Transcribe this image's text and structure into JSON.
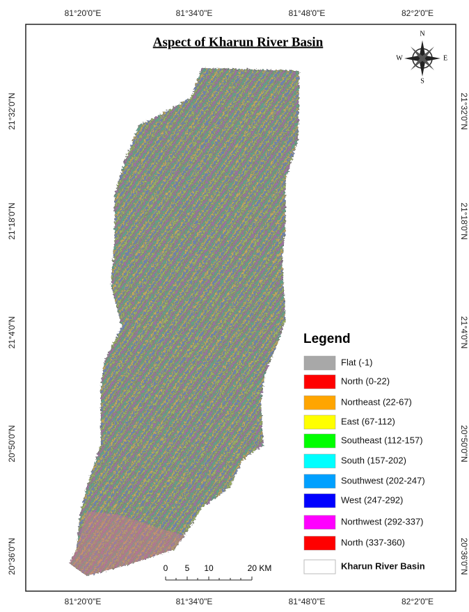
{
  "title": "Aspect of Kharun River Basin",
  "compass": {
    "n": "N",
    "s": "S",
    "e": "E",
    "w": "W"
  },
  "top_labels": [
    "81°20'0\"E",
    "81°34'0\"E",
    "81°48'0\"E",
    "82°2'0\"E"
  ],
  "bottom_labels": [
    "81°20'0\"E",
    "81°34'0\"E",
    "81°48'0\"E",
    "82°2'0\"E"
  ],
  "left_labels": [
    "21°32'0\"N",
    "21°18'0\"N",
    "21°4'0\"N",
    "20°50'0\"N",
    "20°36'0\"N"
  ],
  "right_labels": [
    "21°32'0\"N",
    "21°18'0\"N",
    "21°4'0\"N",
    "20°50'0\"N",
    "20°36'0\"N"
  ],
  "legend": {
    "title": "Legend",
    "items": [
      {
        "label": "Flat (-1)",
        "color": "#a8a8a8"
      },
      {
        "label": "North (0-22)",
        "color": "#ff0000"
      },
      {
        "label": "Northeast (22-67)",
        "color": "#ffa500"
      },
      {
        "label": "East (67-112)",
        "color": "#ffff00"
      },
      {
        "label": "Southeast (112-157)",
        "color": "#00ff00"
      },
      {
        "label": "South (157-202)",
        "color": "#00ffff"
      },
      {
        "label": "Southwest (202-247)",
        "color": "#00a0ff"
      },
      {
        "label": "West (247-292)",
        "color": "#0000ff"
      },
      {
        "label": "Northwest (292-337)",
        "color": "#ff00ff"
      },
      {
        "label": "North (337-360)",
        "color": "#ff0000"
      }
    ],
    "boundary": {
      "label": "Kharun River Basin",
      "color": "#ffffff"
    }
  },
  "scale_bar": [
    "0",
    "5",
    "10",
    "20 KM"
  ]
}
